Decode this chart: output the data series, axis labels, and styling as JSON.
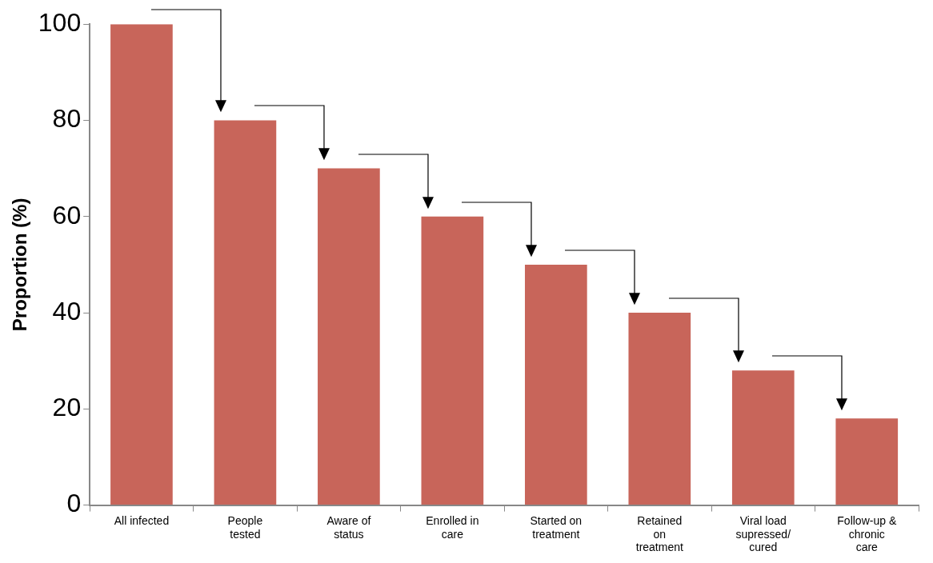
{
  "chart_data": {
    "type": "bar",
    "ylabel": "Proportion (%)",
    "categories": [
      "All infected",
      "People tested",
      "Aware of status",
      "Enrolled in care",
      "Started on treatment",
      "Retained on treatment",
      "Viral load supressed/ cured",
      "Follow-up & chronic care"
    ],
    "values": [
      100,
      80,
      70,
      60,
      50,
      40,
      28,
      18
    ],
    "color": "#c8655a",
    "ylim": [
      0,
      100
    ],
    "yticks": [
      0,
      20,
      40,
      60,
      80,
      100
    ],
    "grid": false,
    "legend": false
  }
}
